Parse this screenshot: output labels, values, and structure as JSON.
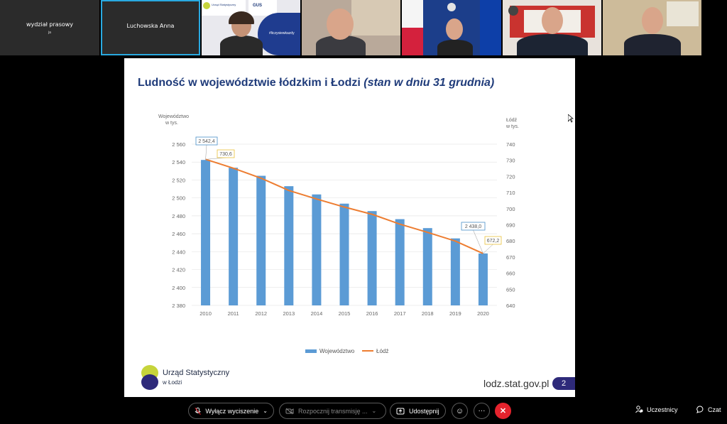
{
  "participants": [
    {
      "name": "wydział prasowy",
      "sub": "ja"
    },
    {
      "name": "Luchowska Anna"
    },
    {
      "name": "",
      "label": "video-participant-3"
    },
    {
      "name": "",
      "label": "video-participant-4"
    },
    {
      "name": "",
      "label": "video-participant-5"
    },
    {
      "name": "",
      "label": "video-participant-6"
    },
    {
      "name": "",
      "label": "video-participant-7"
    }
  ],
  "tile3_banner": {
    "org": "Urząd Statystyczny",
    "gus": "GUS",
    "tag": "#liczysiewkazdy"
  },
  "slide": {
    "title_main": "Ludność w województwie łódzkim i Łodzi",
    "title_note": "(stan w dniu 31 grudnia)",
    "left_axis_title": [
      "Województwo",
      "w tys."
    ],
    "right_axis_title": [
      "Łódź",
      "w tys."
    ],
    "org_name_1": "Urząd Statystyczny",
    "org_name_2": "w Łodzi",
    "url": "lodz.stat.gov.pl",
    "page_number": "2"
  },
  "chart_data": {
    "type": "bar",
    "categories": [
      "2010",
      "2011",
      "2012",
      "2013",
      "2014",
      "2015",
      "2016",
      "2017",
      "2018",
      "2019",
      "2020"
    ],
    "series": [
      {
        "name": "Województwo",
        "type": "bar",
        "axis": "left",
        "color": "#5b9bd5",
        "values": [
          2542.4,
          2533.7,
          2524.7,
          2513.1,
          2503.9,
          2493.6,
          2485.3,
          2476.3,
          2466.3,
          2454.8,
          2438.0
        ]
      },
      {
        "name": "Łódź",
        "type": "line",
        "axis": "right",
        "color": "#ed7d31",
        "values": [
          730.6,
          725.1,
          718.9,
          711.3,
          706.0,
          701.0,
          696.5,
          690.4,
          685.3,
          679.9,
          672.2
        ]
      }
    ],
    "left_axis": {
      "min": 2380,
      "max": 2560,
      "step": 20,
      "tick_labels": [
        "2 380",
        "2 400",
        "2 420",
        "2 440",
        "2 460",
        "2 480",
        "2 500",
        "2 520",
        "2 540",
        "2 560"
      ]
    },
    "right_axis": {
      "min": 640,
      "max": 740,
      "step": 10,
      "tick_labels": [
        "640",
        "650",
        "660",
        "670",
        "680",
        "690",
        "700",
        "710",
        "720",
        "730",
        "740"
      ]
    },
    "data_labels": [
      {
        "series": "Województwo",
        "category": "2010",
        "text": "2 542,4",
        "color": "#4a90c8"
      },
      {
        "series": "Łódź",
        "category": "2010",
        "text": "730,6",
        "color": "#e8c03a"
      },
      {
        "series": "Województwo",
        "category": "2020",
        "text": "2 438,0",
        "color": "#4a90c8"
      },
      {
        "series": "Łódź",
        "category": "2020",
        "text": "672,2",
        "color": "#e8c03a"
      }
    ],
    "legend": {
      "position": "bottom",
      "entries": [
        "Województwo",
        "Łódź"
      ]
    },
    "grid": "horizontal"
  },
  "toolbar": {
    "mute_label": "Wyłącz wyciszenie",
    "broadcast_label": "Rozpocznij transmisję ...",
    "share_label": "Udostępnij",
    "participants_label": "Uczestnicy",
    "chat_label": "Czat"
  },
  "colors": {
    "accent": "#29a9e0",
    "hangup": "#e5232d",
    "slide_title": "#1f3b7a",
    "page_badge": "#2e2a7a"
  }
}
